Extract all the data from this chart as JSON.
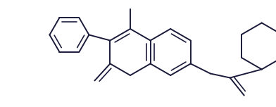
{
  "bg_color": "#ffffff",
  "line_color": "#1a1a3a",
  "line_width": 1.4,
  "fig_width": 3.92,
  "fig_height": 1.52,
  "dpi": 100,
  "xlim": [
    0,
    392
  ],
  "ylim": [
    0,
    152
  ]
}
